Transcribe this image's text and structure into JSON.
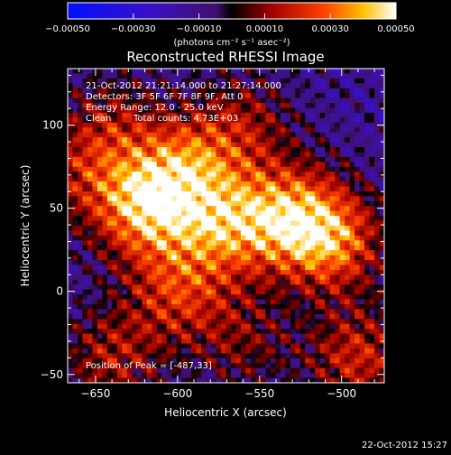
{
  "chart_data": {
    "type": "heatmap",
    "title": "Reconstructed RHESSI Image",
    "xlabel": "Heliocentric X (arcsec)",
    "ylabel": "Heliocentric Y (arcsec)",
    "xlim": [
      -667,
      -474
    ],
    "ylim": [
      -55,
      134
    ],
    "x_ticks": [
      -650,
      -600,
      -550,
      -500
    ],
    "x_tick_labels": [
      "−650",
      "−600",
      "−550",
      "−500"
    ],
    "y_ticks": [
      100,
      50,
      0,
      -50
    ],
    "y_tick_labels": [
      "100",
      "50",
      "0",
      "−50"
    ],
    "colorbar": {
      "range": [
        -0.0005,
        0.0005
      ],
      "ticks": [
        -0.0005,
        -0.0003,
        -0.0001,
        0.0001,
        0.0003,
        0.0005
      ],
      "tick_labels": [
        "−0.00050",
        "−0.00030",
        "−0.00010",
        "0.00010",
        "0.00030",
        "0.00050"
      ],
      "units_label": "(photons cm⁻² s⁻¹ asec⁻²)"
    },
    "peak": [
      -487,
      33
    ],
    "sources": [
      {
        "x": -620,
        "y": 50,
        "amp": 0.00048
      },
      {
        "x": -595,
        "y": 75,
        "amp": 0.00035
      },
      {
        "x": -570,
        "y": 40,
        "amp": 0.0004
      },
      {
        "x": -530,
        "y": 45,
        "amp": 0.00042
      },
      {
        "x": -505,
        "y": 30,
        "amp": 0.00038
      },
      {
        "x": -600,
        "y": 0,
        "amp": 0.0003
      },
      {
        "x": -640,
        "y": 100,
        "amp": 0.0002
      },
      {
        "x": -560,
        "y": 100,
        "amp": 0.00022
      },
      {
        "x": -640,
        "y": -40,
        "amp": 0.00025
      },
      {
        "x": -490,
        "y": -40,
        "amp": 0.0003
      },
      {
        "x": -560,
        "y": -30,
        "amp": 0.00018
      },
      {
        "x": -660,
        "y": 70,
        "amp": 0.0002
      }
    ]
  },
  "annotations": {
    "time_range": "21-Oct-2012 21:21:14.000 to 21:27:14.000",
    "detectors": "Detectors: 3F 5F 6F 7F 8F 9F, Att 0",
    "energy": "Energy Range: 12.0 - 25.0 keV",
    "clean_label": "Clean",
    "total_counts": "Total counts: 4.73E+03",
    "peak_text": "Position of Peak = [-487,33]"
  },
  "timestamp": "22-Oct-2012 15:27"
}
